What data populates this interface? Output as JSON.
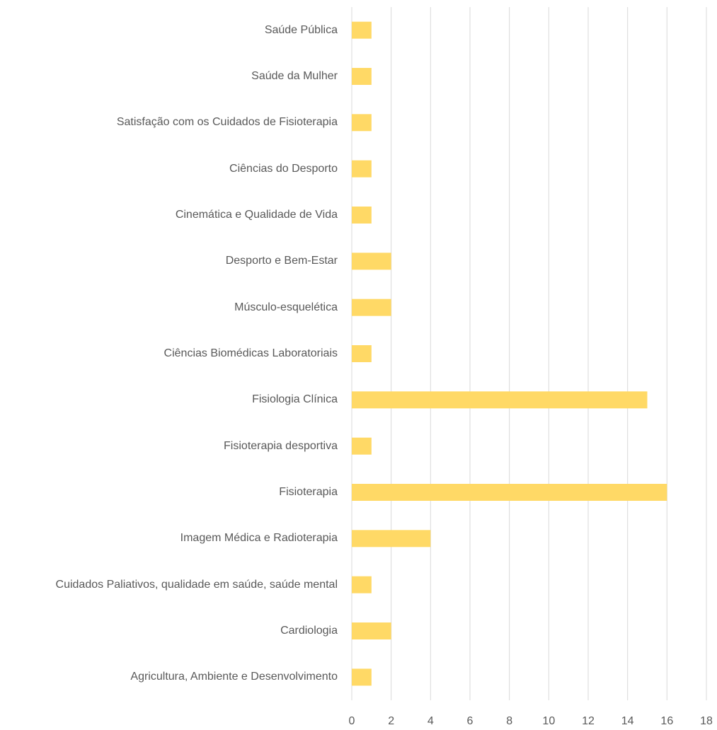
{
  "chart_data": {
    "type": "barh",
    "categories": [
      "Saúde Pública",
      "Saúde da Mulher",
      "Satisfação com os Cuidados de Fisioterapia",
      "Ciências do Desporto",
      "Cinemática e Qualidade de Vida",
      "Desporto e Bem-Estar",
      "Músculo-esquelética",
      "Ciências Biomédicas Laboratoriais",
      "Fisiologia Clínica",
      "Fisioterapia desportiva",
      "Fisioterapia",
      "Imagem Médica e Radioterapia",
      "Cuidados Paliativos, qualidade em saúde, saúde mental",
      "Cardiologia",
      "Agricultura, Ambiente e Desenvolvimento"
    ],
    "values": [
      1,
      1,
      1,
      1,
      1,
      2,
      2,
      1,
      15,
      1,
      16,
      4,
      1,
      2,
      1
    ],
    "color": "#ffd966",
    "xlim": [
      0,
      18
    ],
    "xticks": [
      0,
      2,
      4,
      6,
      8,
      10,
      12,
      14,
      16,
      18
    ],
    "grid": true
  }
}
